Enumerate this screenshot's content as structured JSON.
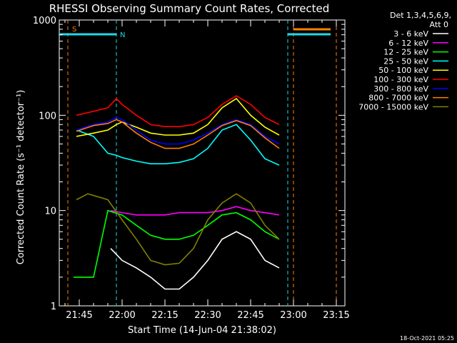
{
  "chart_data": {
    "type": "line",
    "title": "RHESSI Observing Summary Count Rates, Corrected",
    "ylabel": "Corrected Count Rate (s⁻¹ detector⁻¹)",
    "xlabel": "Start Time (14-Jun-04 21:38:02)",
    "timestamp": "18-Oct-2021 05:25",
    "ylim": [
      1,
      1000
    ],
    "yscale": "log",
    "xlim": [
      "21:38",
      "23:18"
    ],
    "yticks": [
      "1",
      "10",
      "100",
      "1000"
    ],
    "xticks": [
      "21:45",
      "22:00",
      "22:15",
      "22:30",
      "22:45",
      "23:00",
      "23:15"
    ],
    "legend_header": [
      "Det 1,3,4,5,6,9,",
      "Att 0"
    ],
    "legend_position": "top-right outside",
    "flags": [
      {
        "label": "S",
        "color": "#ff8000"
      },
      {
        "label": "N",
        "color": "#22d8e8"
      }
    ],
    "series": [
      {
        "name": "3 - 6 keV",
        "color": "#ffffff",
        "x": [
          "21:56",
          "22:00",
          "22:05",
          "22:10",
          "22:15",
          "22:20",
          "22:25",
          "22:30",
          "22:35",
          "22:40",
          "22:45",
          "22:50",
          "22:55"
        ],
        "values": [
          4,
          3,
          2.5,
          2,
          1.5,
          1.5,
          2,
          3,
          5,
          6,
          5,
          3,
          2.5
        ]
      },
      {
        "name": "6 - 12 keV",
        "color": "#ff00ff",
        "x": [
          "21:56",
          "22:00",
          "22:05",
          "22:10",
          "22:15",
          "22:20",
          "22:25",
          "22:30",
          "22:35",
          "22:40",
          "22:45",
          "22:50",
          "22:55"
        ],
        "values": [
          10,
          9.5,
          9,
          9,
          9,
          9.5,
          9.5,
          9.5,
          10,
          11,
          10,
          9.5,
          9
        ]
      },
      {
        "name": "12 - 25 keV",
        "color": "#00ff00",
        "x": [
          "21:43",
          "21:50",
          "21:55",
          "22:00",
          "22:05",
          "22:10",
          "22:15",
          "22:20",
          "22:25",
          "22:30",
          "22:35",
          "22:40",
          "22:45",
          "22:50",
          "22:55"
        ],
        "values": [
          2,
          2,
          10,
          9,
          7,
          5.5,
          5,
          5,
          5.5,
          7,
          9,
          9.5,
          8,
          6,
          5
        ]
      },
      {
        "name": "25 - 50 keV",
        "color": "#00ffff",
        "x": [
          "21:44",
          "21:50",
          "21:55",
          "21:58",
          "22:00",
          "22:05",
          "22:10",
          "22:15",
          "22:20",
          "22:25",
          "22:30",
          "22:35",
          "22:40",
          "22:45",
          "22:50",
          "22:55"
        ],
        "values": [
          70,
          60,
          40,
          38,
          36,
          33,
          31,
          31,
          32,
          35,
          45,
          70,
          80,
          55,
          35,
          30
        ]
      },
      {
        "name": "50 - 100 keV",
        "color": "#ffff00",
        "x": [
          "21:44",
          "21:50",
          "21:55",
          "21:58",
          "22:00",
          "22:05",
          "22:10",
          "22:15",
          "22:20",
          "22:25",
          "22:30",
          "22:35",
          "22:40",
          "22:45",
          "22:50",
          "22:55"
        ],
        "values": [
          60,
          65,
          70,
          80,
          85,
          75,
          65,
          62,
          62,
          65,
          80,
          120,
          150,
          100,
          75,
          62
        ]
      },
      {
        "name": "100 - 300 keV",
        "color": "#ff0000",
        "x": [
          "21:44",
          "21:50",
          "21:55",
          "21:58",
          "22:00",
          "22:05",
          "22:10",
          "22:15",
          "22:20",
          "22:25",
          "22:30",
          "22:35",
          "22:40",
          "22:45",
          "22:50",
          "22:55"
        ],
        "values": [
          100,
          110,
          120,
          150,
          130,
          100,
          80,
          76,
          76,
          80,
          95,
          130,
          160,
          130,
          95,
          80
        ]
      },
      {
        "name": "300 - 800 keV",
        "color": "#0000ff",
        "x": [
          "21:44",
          "21:50",
          "21:55",
          "21:58",
          "22:00",
          "22:05",
          "22:10",
          "22:15",
          "22:20",
          "22:25",
          "22:30",
          "22:35",
          "22:40",
          "22:45",
          "22:50",
          "22:55"
        ],
        "values": [
          70,
          80,
          85,
          95,
          90,
          70,
          55,
          50,
          50,
          55,
          65,
          80,
          90,
          80,
          60,
          50
        ]
      },
      {
        "name": "800 - 7000 keV",
        "color": "#ff8000",
        "x": [
          "21:44",
          "21:50",
          "21:55",
          "21:58",
          "22:00",
          "22:05",
          "22:10",
          "22:15",
          "22:20",
          "22:25",
          "22:30",
          "22:35",
          "22:40",
          "22:45",
          "22:50",
          "22:55"
        ],
        "values": [
          68,
          78,
          82,
          90,
          85,
          65,
          52,
          45,
          45,
          50,
          62,
          78,
          88,
          78,
          58,
          45
        ]
      },
      {
        "name": "7000 - 15000 keV",
        "color": "#808000",
        "x": [
          "21:44",
          "21:48",
          "21:55",
          "22:00",
          "22:05",
          "22:10",
          "22:15",
          "22:20",
          "22:25",
          "22:30",
          "22:35",
          "22:40",
          "22:45",
          "22:50",
          "22:55"
        ],
        "values": [
          13,
          15,
          13,
          8,
          5,
          3,
          2.7,
          2.8,
          4,
          8,
          12,
          15,
          12,
          7,
          5
        ]
      }
    ]
  }
}
